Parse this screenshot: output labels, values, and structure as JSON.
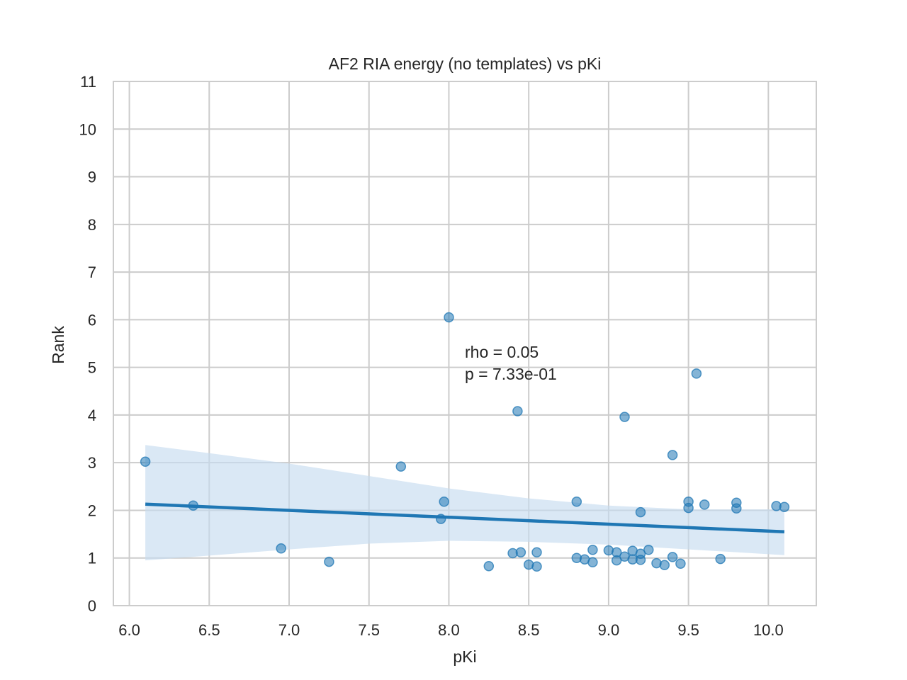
{
  "chart_data": {
    "type": "scatter",
    "title": "AF2 RIA energy (no templates) vs pKi",
    "xlabel": "pKi",
    "ylabel": "Rank",
    "xlim": [
      5.9,
      10.3
    ],
    "ylim": [
      0,
      11
    ],
    "xticks": [
      "6.0",
      "6.5",
      "7.0",
      "7.5",
      "8.0",
      "8.5",
      "9.0",
      "9.5",
      "10.0"
    ],
    "yticks": [
      "0",
      "1",
      "2",
      "3",
      "4",
      "5",
      "6",
      "7",
      "8",
      "9",
      "10",
      "11"
    ],
    "grid": true,
    "colors": {
      "points": "#1f77b4",
      "line": "#1f77b4",
      "band": "#c6dbef",
      "grid": "#cccccc"
    },
    "annotation": {
      "lines": [
        "rho = 0.05",
        "p = 7.33e-01"
      ],
      "x": 8.1,
      "y": 5.2
    },
    "points": [
      {
        "x": 6.1,
        "y": 3.02
      },
      {
        "x": 6.4,
        "y": 2.1
      },
      {
        "x": 6.95,
        "y": 1.2
      },
      {
        "x": 7.25,
        "y": 0.92
      },
      {
        "x": 7.7,
        "y": 2.92
      },
      {
        "x": 7.95,
        "y": 1.82
      },
      {
        "x": 7.97,
        "y": 2.18
      },
      {
        "x": 8.0,
        "y": 6.05
      },
      {
        "x": 8.25,
        "y": 0.83
      },
      {
        "x": 8.4,
        "y": 1.1
      },
      {
        "x": 8.43,
        "y": 4.08
      },
      {
        "x": 8.45,
        "y": 1.12
      },
      {
        "x": 8.5,
        "y": 0.86
      },
      {
        "x": 8.55,
        "y": 1.12
      },
      {
        "x": 8.55,
        "y": 0.82
      },
      {
        "x": 8.8,
        "y": 2.18
      },
      {
        "x": 8.8,
        "y": 1.0
      },
      {
        "x": 8.85,
        "y": 0.97
      },
      {
        "x": 8.9,
        "y": 1.17
      },
      {
        "x": 8.9,
        "y": 0.91
      },
      {
        "x": 9.0,
        "y": 1.16
      },
      {
        "x": 9.05,
        "y": 1.12
      },
      {
        "x": 9.05,
        "y": 0.95
      },
      {
        "x": 9.1,
        "y": 3.96
      },
      {
        "x": 9.1,
        "y": 1.03
      },
      {
        "x": 9.15,
        "y": 1.15
      },
      {
        "x": 9.15,
        "y": 0.97
      },
      {
        "x": 9.2,
        "y": 1.96
      },
      {
        "x": 9.2,
        "y": 1.09
      },
      {
        "x": 9.2,
        "y": 0.96
      },
      {
        "x": 9.25,
        "y": 1.17
      },
      {
        "x": 9.3,
        "y": 0.89
      },
      {
        "x": 9.35,
        "y": 0.85
      },
      {
        "x": 9.4,
        "y": 3.16
      },
      {
        "x": 9.4,
        "y": 1.02
      },
      {
        "x": 9.45,
        "y": 0.88
      },
      {
        "x": 9.5,
        "y": 2.18
      },
      {
        "x": 9.5,
        "y": 2.05
      },
      {
        "x": 9.55,
        "y": 4.87
      },
      {
        "x": 9.6,
        "y": 2.12
      },
      {
        "x": 9.7,
        "y": 0.98
      },
      {
        "x": 9.8,
        "y": 2.16
      },
      {
        "x": 9.8,
        "y": 2.04
      },
      {
        "x": 10.05,
        "y": 2.09
      },
      {
        "x": 10.1,
        "y": 2.07
      }
    ],
    "regression": {
      "x": [
        6.1,
        10.1
      ],
      "y": [
        2.13,
        1.55
      ]
    },
    "ci_band": {
      "x": [
        6.1,
        6.5,
        7.0,
        7.5,
        8.0,
        8.5,
        9.0,
        9.5,
        10.1
      ],
      "upper": [
        3.37,
        3.2,
        2.98,
        2.72,
        2.46,
        2.25,
        2.1,
        2.02,
        2.02
      ],
      "lower": [
        0.95,
        1.05,
        1.18,
        1.3,
        1.36,
        1.34,
        1.28,
        1.18,
        1.06
      ]
    }
  }
}
